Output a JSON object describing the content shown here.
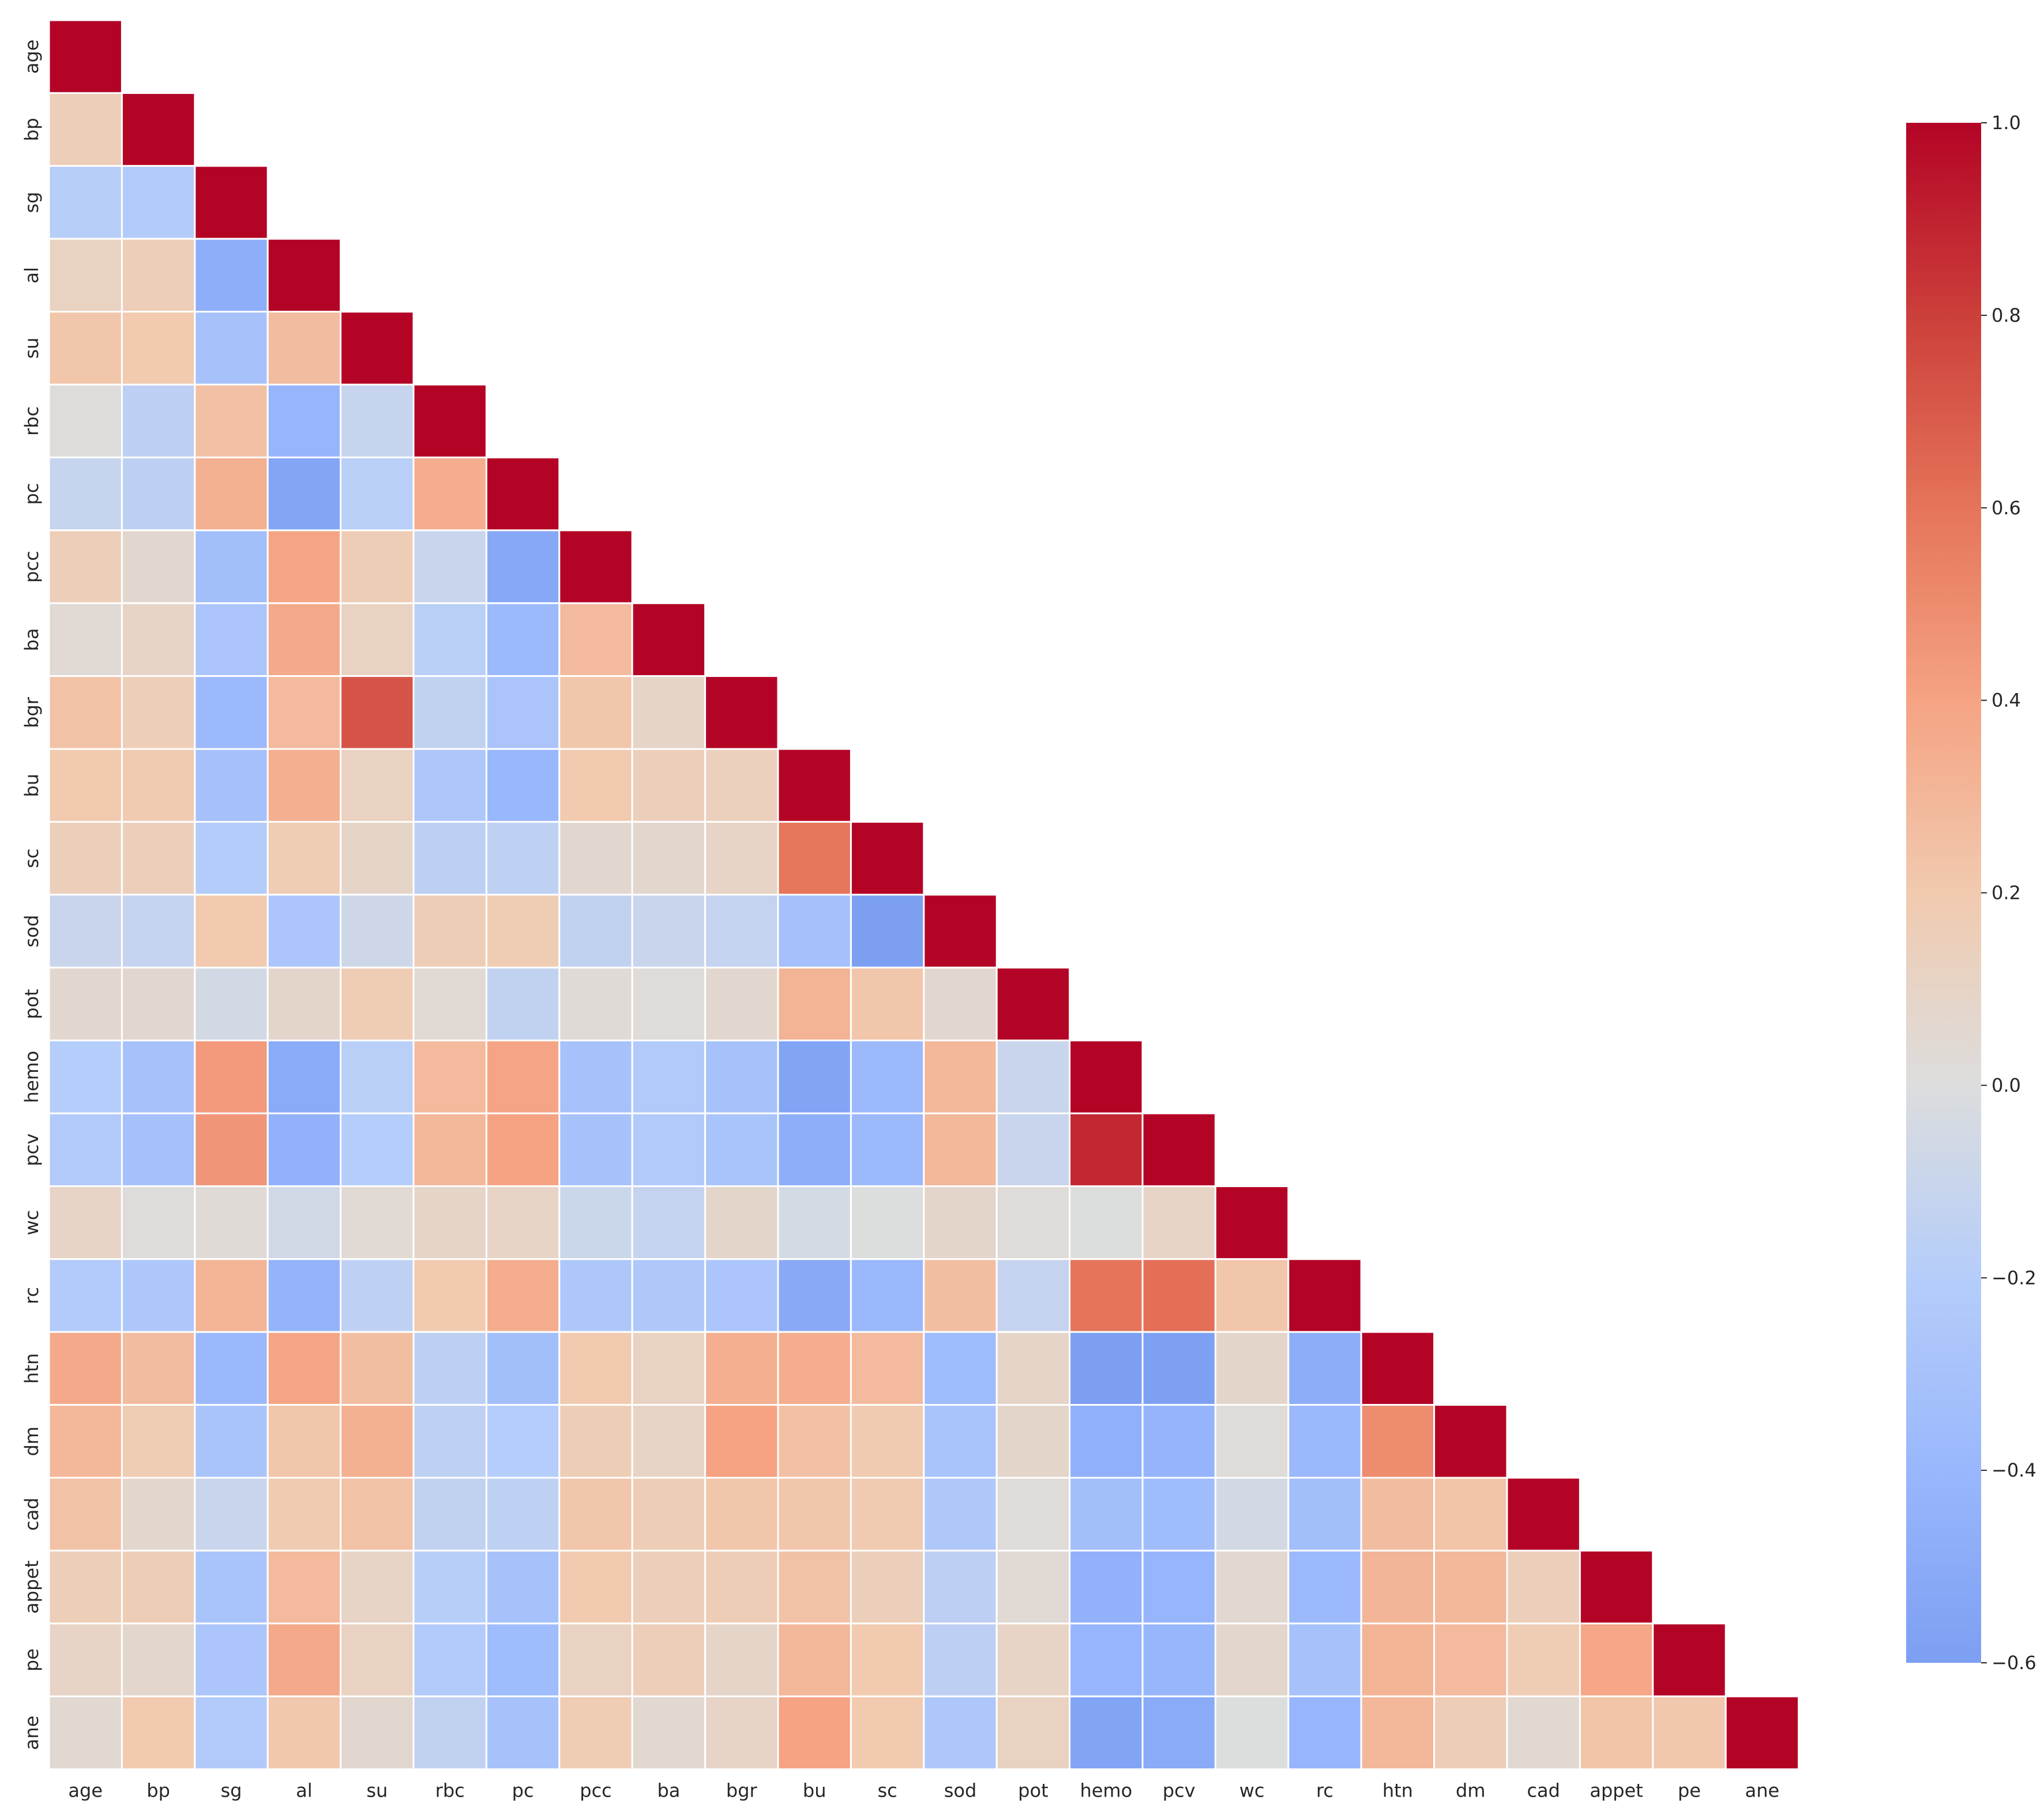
{
  "chart_data": {
    "type": "heatmap",
    "title": "",
    "xlabel": "",
    "ylabel": "",
    "variables": [
      "age",
      "bp",
      "sg",
      "al",
      "su",
      "rbc",
      "pc",
      "pcc",
      "ba",
      "bgr",
      "bu",
      "sc",
      "sod",
      "pot",
      "hemo",
      "pcv",
      "wc",
      "rc",
      "htn",
      "dm",
      "cad",
      "appet",
      "pe",
      "ane"
    ],
    "mask": "upper triangle above diagonal hidden",
    "colormap": "coolwarm",
    "vmin": -0.6,
    "vmax": 1.0,
    "colorbar_ticks": [
      1.0,
      0.8,
      0.6,
      0.4,
      0.2,
      0.0,
      -0.2,
      -0.4,
      -0.6
    ],
    "colorbar_tick_labels": [
      "1.0",
      "0.8",
      "0.6",
      "0.4",
      "0.2",
      "0.0",
      "−0.2",
      "−0.4",
      "−0.6"
    ],
    "rows": [
      [
        1.0
      ],
      [
        0.16,
        1.0
      ],
      [
        -0.19,
        -0.22,
        1.0
      ],
      [
        0.12,
        0.16,
        -0.47,
        1.0
      ],
      [
        0.22,
        0.2,
        -0.3,
        0.27,
        1.0
      ],
      [
        0.01,
        -0.16,
        0.25,
        -0.41,
        -0.11,
        1.0
      ],
      [
        -0.11,
        -0.16,
        0.33,
        -0.55,
        -0.18,
        0.35,
        1.0
      ],
      [
        0.16,
        0.06,
        -0.33,
        0.39,
        0.17,
        -0.1,
        -0.52,
        1.0
      ],
      [
        0.04,
        0.1,
        -0.27,
        0.37,
        0.12,
        -0.18,
        -0.37,
        0.28,
        1.0
      ],
      [
        0.24,
        0.16,
        -0.37,
        0.28,
        0.72,
        -0.14,
        -0.27,
        0.22,
        0.09,
        1.0
      ],
      [
        0.2,
        0.19,
        -0.31,
        0.34,
        0.12,
        -0.25,
        -0.39,
        0.2,
        0.15,
        0.14,
        1.0
      ],
      [
        0.15,
        0.15,
        -0.21,
        0.18,
        0.09,
        -0.16,
        -0.15,
        0.06,
        0.07,
        0.1,
        0.59,
        1.0
      ],
      [
        -0.1,
        -0.12,
        0.2,
        -0.26,
        -0.07,
        0.17,
        0.18,
        -0.14,
        -0.1,
        -0.13,
        -0.31,
        -0.69,
        1.0
      ],
      [
        0.06,
        0.06,
        -0.05,
        0.08,
        0.18,
        0.04,
        -0.14,
        0.03,
        0.02,
        0.06,
        0.32,
        0.22,
        0.06,
        1.0
      ],
      [
        -0.2,
        -0.3,
        0.44,
        -0.5,
        -0.18,
        0.28,
        0.39,
        -0.3,
        -0.23,
        -0.3,
        -0.56,
        -0.37,
        0.3,
        -0.1,
        1.0
      ],
      [
        -0.23,
        -0.31,
        0.46,
        -0.44,
        -0.2,
        0.3,
        0.4,
        -0.3,
        -0.23,
        -0.28,
        -0.47,
        -0.37,
        0.3,
        -0.1,
        0.88,
        1.0
      ],
      [
        0.1,
        0.01,
        0.03,
        -0.06,
        0.04,
        0.09,
        0.1,
        -0.09,
        -0.12,
        0.08,
        -0.04,
        0.0,
        0.08,
        0.02,
        0.0,
        0.1,
        1.0
      ],
      [
        -0.22,
        -0.25,
        0.32,
        -0.43,
        -0.15,
        0.2,
        0.35,
        -0.25,
        -0.24,
        -0.26,
        -0.51,
        -0.38,
        0.26,
        -0.12,
        0.6,
        0.62,
        0.22,
        1.0
      ],
      [
        0.37,
        0.27,
        -0.38,
        0.39,
        0.26,
        -0.16,
        -0.33,
        0.2,
        0.12,
        0.34,
        0.35,
        0.28,
        -0.35,
        0.09,
        -0.62,
        -0.59,
        0.08,
        -0.48,
        1.0
      ],
      [
        0.3,
        0.18,
        -0.28,
        0.22,
        0.33,
        -0.15,
        -0.2,
        0.17,
        0.1,
        0.4,
        0.25,
        0.19,
        -0.28,
        0.08,
        -0.45,
        -0.42,
        0.02,
        -0.38,
        0.5,
        1.0
      ],
      [
        0.24,
        0.07,
        -0.1,
        0.19,
        0.24,
        -0.14,
        -0.15,
        0.22,
        0.17,
        0.22,
        0.22,
        0.19,
        -0.24,
        0.02,
        -0.33,
        -0.35,
        -0.05,
        -0.33,
        0.27,
        0.23,
        1.0
      ],
      [
        0.16,
        0.17,
        -0.28,
        0.28,
        0.1,
        -0.19,
        -0.3,
        0.2,
        0.15,
        0.17,
        0.24,
        0.15,
        -0.16,
        0.04,
        -0.44,
        -0.41,
        0.05,
        -0.37,
        0.31,
        0.3,
        0.15,
        1.0
      ],
      [
        0.1,
        0.07,
        -0.26,
        0.37,
        0.12,
        -0.22,
        -0.35,
        0.12,
        0.16,
        0.09,
        0.3,
        0.2,
        -0.16,
        0.1,
        -0.41,
        -0.4,
        0.07,
        -0.3,
        0.32,
        0.28,
        0.18,
        0.38,
        1.0
      ],
      [
        0.05,
        0.2,
        -0.23,
        0.21,
        0.06,
        -0.14,
        -0.3,
        0.18,
        0.05,
        0.1,
        0.4,
        0.2,
        -0.25,
        0.12,
        -0.56,
        -0.5,
        0.0,
        -0.41,
        0.3,
        0.17,
        0.05,
        0.23,
        0.21,
        1.0
      ]
    ]
  }
}
